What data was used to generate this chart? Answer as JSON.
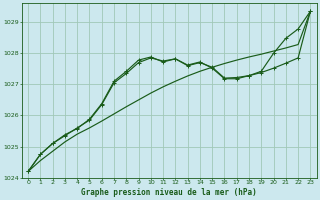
{
  "bg_color": "#cce8ee",
  "grid_color": "#a0c8b8",
  "line_color": "#1a5c1a",
  "xlabel": "Graphe pression niveau de la mer (hPa)",
  "ylim": [
    1024.0,
    1029.6
  ],
  "xlim": [
    -0.5,
    23.5
  ],
  "yticks": [
    1024,
    1025,
    1026,
    1027,
    1028,
    1029
  ],
  "xticks": [
    0,
    1,
    2,
    3,
    4,
    5,
    6,
    7,
    8,
    9,
    10,
    11,
    12,
    13,
    14,
    15,
    16,
    17,
    18,
    19,
    20,
    21,
    22,
    23
  ],
  "series1_x": [
    0,
    1,
    2,
    3,
    4,
    5,
    6,
    7,
    8,
    9,
    10,
    11,
    12,
    13,
    14,
    15,
    16,
    17,
    18,
    19,
    20,
    21,
    22,
    23
  ],
  "series1_y": [
    1024.2,
    1024.55,
    1024.85,
    1025.15,
    1025.4,
    1025.6,
    1025.82,
    1026.05,
    1026.28,
    1026.5,
    1026.72,
    1026.92,
    1027.1,
    1027.27,
    1027.42,
    1027.55,
    1027.67,
    1027.78,
    1027.88,
    1027.97,
    1028.07,
    1028.17,
    1028.28,
    1029.35
  ],
  "series2_x": [
    0,
    1,
    2,
    3,
    4,
    5,
    6,
    7,
    8,
    9,
    10,
    11,
    12,
    13,
    14,
    15,
    16,
    17,
    18,
    19,
    20,
    21,
    22,
    23
  ],
  "series2_y": [
    1024.2,
    1024.75,
    1025.1,
    1025.35,
    1025.6,
    1025.85,
    1026.35,
    1027.05,
    1027.35,
    1027.7,
    1027.85,
    1027.75,
    1027.82,
    1027.6,
    1027.7,
    1027.55,
    1027.2,
    1027.22,
    1027.28,
    1027.38,
    1027.52,
    1027.68,
    1027.85,
    1029.35
  ],
  "series3_x": [
    0,
    1,
    2,
    3,
    4,
    5,
    6,
    7,
    8,
    9,
    10,
    11,
    12,
    13,
    14,
    15,
    16,
    17,
    18,
    19,
    20,
    21,
    22,
    23
  ],
  "series3_y": [
    1024.2,
    1024.75,
    1025.1,
    1025.38,
    1025.58,
    1025.88,
    1026.38,
    1027.1,
    1027.42,
    1027.78,
    1027.88,
    1027.72,
    1027.82,
    1027.62,
    1027.72,
    1027.52,
    1027.18,
    1027.18,
    1027.28,
    1027.42,
    1028.0,
    1028.48,
    1028.78,
    1029.35
  ]
}
